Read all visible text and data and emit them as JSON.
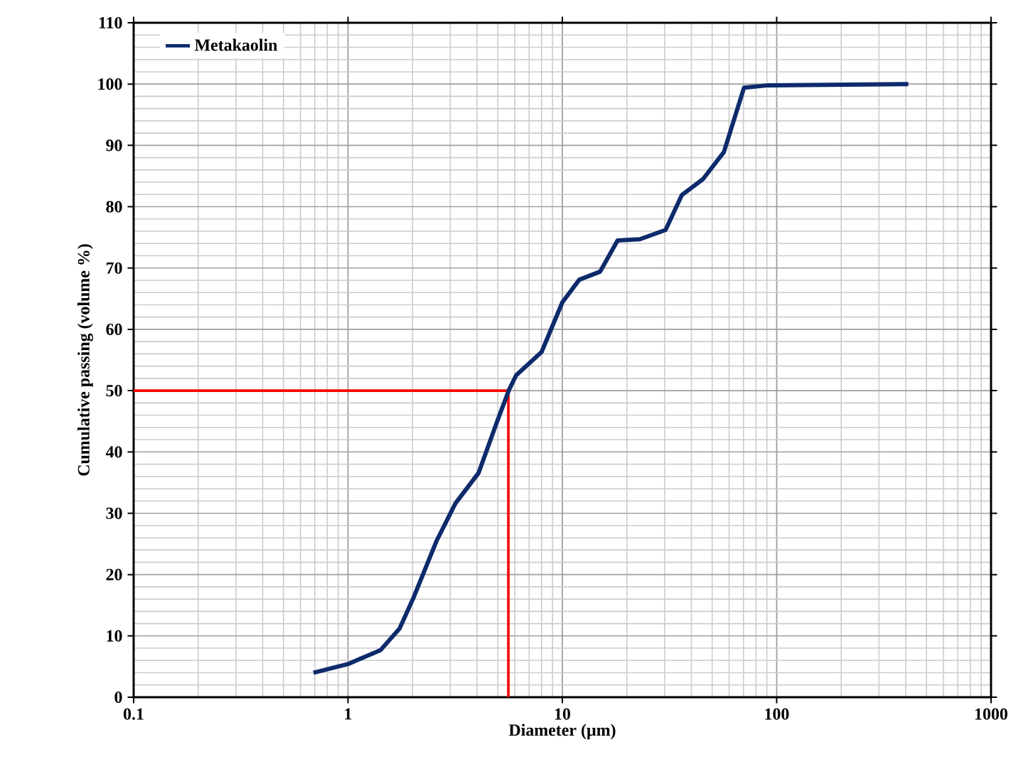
{
  "chart_data": {
    "type": "line",
    "xlabel": "Diameter (µm)",
    "ylabel": "Cumulative  passing (volume %)",
    "log": "x",
    "grid": true,
    "legend": "top left",
    "marker": "none",
    "line_style": "solid",
    "xlim": [
      0.1,
      1000
    ],
    "ylim": [
      0,
      110
    ],
    "xticks": [
      0.1,
      1,
      10,
      100,
      1000
    ],
    "yticks": [
      0,
      10,
      20,
      30,
      40,
      50,
      60,
      70,
      80,
      90,
      100,
      110
    ],
    "series": [
      {
        "name": "Metakaolin",
        "color": "#0d2a6b",
        "x": [
          0.69,
          1.0,
          1.42,
          1.74,
          2.02,
          2.59,
          3.17,
          4.07,
          4.98,
          5.65,
          6.09,
          8.0,
          10.0,
          12.0,
          15.0,
          18.1,
          23.0,
          30.3,
          36.1,
          45.3,
          56.7,
          70.4,
          91.4,
          411
        ],
        "values": [
          4.0,
          5.4,
          7.7,
          11.2,
          16.2,
          25.5,
          31.6,
          36.6,
          45.1,
          50.2,
          52.5,
          56.3,
          64.4,
          68.1,
          69.4,
          74.5,
          74.7,
          76.2,
          81.9,
          84.5,
          88.9,
          99.4,
          99.8,
          100
        ]
      }
    ],
    "ref_lines": [
      {
        "axis": "y",
        "value": 50,
        "color": "#ff0000",
        "line_style": "solid"
      },
      {
        "axis": "x",
        "value": 5.6,
        "color": "#ff0000",
        "line_style": "solid"
      }
    ]
  }
}
